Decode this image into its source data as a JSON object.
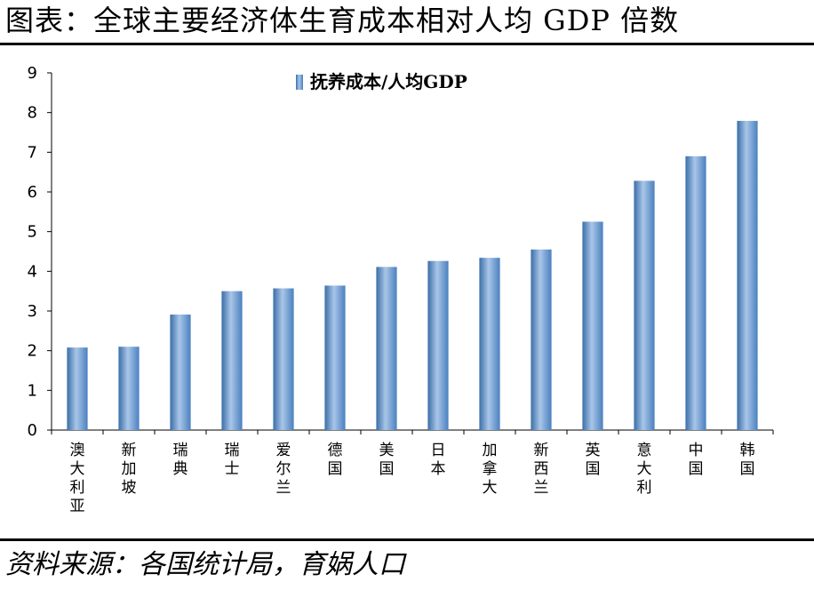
{
  "figure": {
    "title": "图表：全球主要经济体生育成本相对人均 GDP 倍数",
    "source": "资料来源：各国统计局，育娲人口"
  },
  "chart_data": {
    "type": "bar",
    "title": "",
    "xlabel": "",
    "ylabel": "",
    "ylim": [
      0,
      9
    ],
    "yticks": [
      0,
      1,
      2,
      3,
      4,
      5,
      6,
      7,
      8,
      9
    ],
    "legend": {
      "position": "top-center"
    },
    "categories": [
      "澳大利亚",
      "新加坡",
      "瑞典",
      "瑞士",
      "爱尔兰",
      "德国",
      "美国",
      "日本",
      "加拿大",
      "新西兰",
      "英国",
      "意大利",
      "中国",
      "韩国"
    ],
    "series": [
      {
        "name": "抚养成本/人均GDP",
        "values": [
          2.08,
          2.1,
          2.91,
          3.5,
          3.57,
          3.64,
          4.11,
          4.26,
          4.34,
          4.55,
          5.25,
          6.28,
          6.9,
          7.79
        ]
      }
    ],
    "colors": {
      "bar_edge": "#3a6ea8",
      "bar_center": "#a9c6e8",
      "bar_dark": "#4a80bf"
    }
  }
}
